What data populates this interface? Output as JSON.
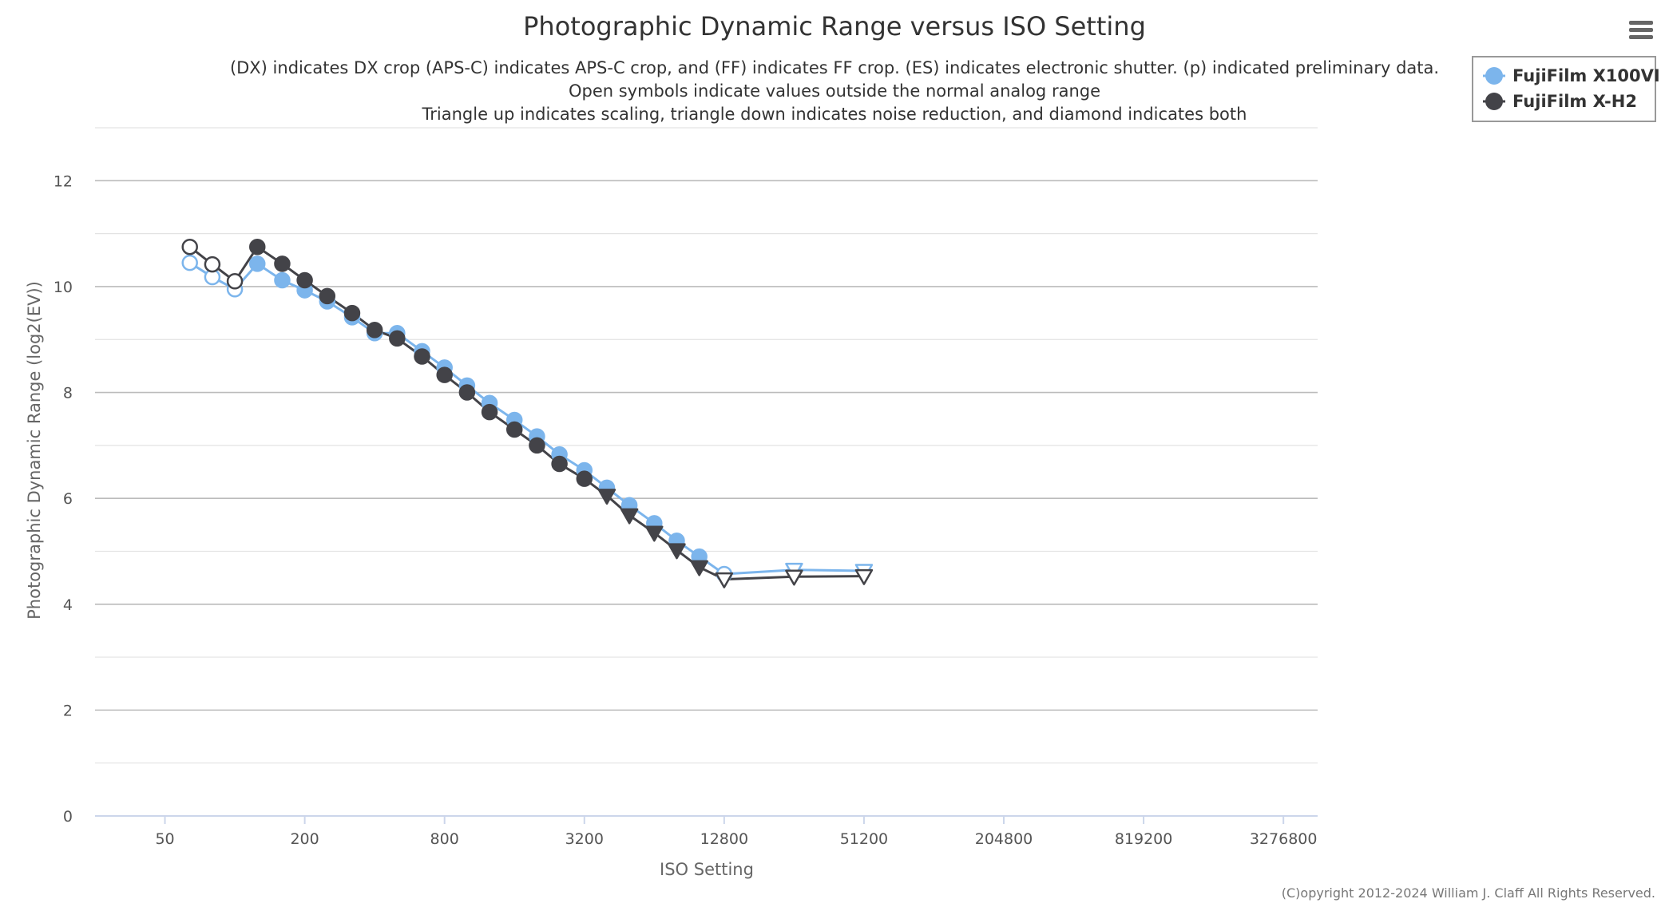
{
  "chart_data": {
    "type": "line",
    "title": "Photographic Dynamic Range versus ISO Setting",
    "subtitle_lines": [
      "(DX) indicates DX crop (APS-C) indicates APS-C crop, and (FF) indicates FF crop. (ES) indicates electronic shutter. (p) indicated preliminary data.",
      "Open symbols indicate values outside the normal analog range",
      "Triangle up indicates scaling, triangle down indicates noise reduction, and diamond indicates both"
    ],
    "xlabel": "ISO Setting",
    "ylabel": "Photographic Dynamic Range (log2(EV))",
    "x_scale": "log2",
    "xlim": [
      25,
      4600000
    ],
    "ylim": [
      0,
      13
    ],
    "x_ticks": [
      50,
      200,
      800,
      3200,
      12800,
      51200,
      204800,
      819200,
      3276800
    ],
    "x_tick_labels": [
      "50",
      "200",
      "800",
      "3200",
      "12800",
      "51200",
      "204800",
      "819200",
      "3276800"
    ],
    "y_ticks": [
      0,
      2,
      4,
      6,
      8,
      10,
      12
    ],
    "y_tick_labels": [
      "0",
      "2",
      "4",
      "6",
      "8",
      "10",
      "12"
    ],
    "grid": true,
    "legend_position": "top-right",
    "series": [
      {
        "name": "FujiFilm X100VI",
        "color": "#7cb5ec",
        "points": [
          {
            "x": 64,
            "y": 10.45,
            "symbol": "circle",
            "open": true
          },
          {
            "x": 80,
            "y": 10.18,
            "symbol": "circle",
            "open": true
          },
          {
            "x": 100,
            "y": 9.95,
            "symbol": "circle",
            "open": true
          },
          {
            "x": 125,
            "y": 10.43,
            "symbol": "circle",
            "open": false
          },
          {
            "x": 160,
            "y": 10.12,
            "symbol": "circle",
            "open": false
          },
          {
            "x": 200,
            "y": 9.93,
            "symbol": "circle",
            "open": false
          },
          {
            "x": 250,
            "y": 9.72,
            "symbol": "circle",
            "open": false
          },
          {
            "x": 320,
            "y": 9.42,
            "symbol": "circle",
            "open": false
          },
          {
            "x": 400,
            "y": 9.12,
            "symbol": "circle",
            "open": false
          },
          {
            "x": 500,
            "y": 9.12,
            "symbol": "circle",
            "open": false
          },
          {
            "x": 640,
            "y": 8.78,
            "symbol": "circle",
            "open": false
          },
          {
            "x": 800,
            "y": 8.47,
            "symbol": "circle",
            "open": false
          },
          {
            "x": 1000,
            "y": 8.13,
            "symbol": "circle",
            "open": false
          },
          {
            "x": 1250,
            "y": 7.8,
            "symbol": "circle",
            "open": false
          },
          {
            "x": 1600,
            "y": 7.48,
            "symbol": "circle",
            "open": false
          },
          {
            "x": 2000,
            "y": 7.17,
            "symbol": "circle",
            "open": false
          },
          {
            "x": 2500,
            "y": 6.83,
            "symbol": "circle",
            "open": false
          },
          {
            "x": 3200,
            "y": 6.53,
            "symbol": "circle",
            "open": false
          },
          {
            "x": 4000,
            "y": 6.2,
            "symbol": "circle",
            "open": false
          },
          {
            "x": 5000,
            "y": 5.87,
            "symbol": "circle",
            "open": false
          },
          {
            "x": 6400,
            "y": 5.53,
            "symbol": "circle",
            "open": false
          },
          {
            "x": 8000,
            "y": 5.2,
            "symbol": "circle",
            "open": false
          },
          {
            "x": 10000,
            "y": 4.9,
            "symbol": "circle",
            "open": false
          },
          {
            "x": 12800,
            "y": 4.57,
            "symbol": "circle",
            "open": true
          },
          {
            "x": 25600,
            "y": 4.65,
            "symbol": "triangle-down",
            "open": true
          },
          {
            "x": 51200,
            "y": 4.63,
            "symbol": "triangle-down",
            "open": true
          }
        ]
      },
      {
        "name": "FujiFilm X-H2",
        "color": "#434348",
        "points": [
          {
            "x": 64,
            "y": 10.75,
            "symbol": "circle",
            "open": true
          },
          {
            "x": 80,
            "y": 10.42,
            "symbol": "circle",
            "open": true
          },
          {
            "x": 100,
            "y": 10.1,
            "symbol": "circle",
            "open": true
          },
          {
            "x": 125,
            "y": 10.75,
            "symbol": "circle",
            "open": false
          },
          {
            "x": 160,
            "y": 10.43,
            "symbol": "circle",
            "open": false
          },
          {
            "x": 200,
            "y": 10.12,
            "symbol": "circle",
            "open": false
          },
          {
            "x": 250,
            "y": 9.82,
            "symbol": "circle",
            "open": false
          },
          {
            "x": 320,
            "y": 9.5,
            "symbol": "circle",
            "open": false
          },
          {
            "x": 400,
            "y": 9.18,
            "symbol": "circle",
            "open": false
          },
          {
            "x": 500,
            "y": 9.02,
            "symbol": "circle",
            "open": false
          },
          {
            "x": 640,
            "y": 8.68,
            "symbol": "circle",
            "open": false
          },
          {
            "x": 800,
            "y": 8.33,
            "symbol": "circle",
            "open": false
          },
          {
            "x": 1000,
            "y": 8.0,
            "symbol": "circle",
            "open": false
          },
          {
            "x": 1250,
            "y": 7.63,
            "symbol": "circle",
            "open": false
          },
          {
            "x": 1600,
            "y": 7.3,
            "symbol": "circle",
            "open": false
          },
          {
            "x": 2000,
            "y": 7.0,
            "symbol": "circle",
            "open": false
          },
          {
            "x": 2500,
            "y": 6.65,
            "symbol": "circle",
            "open": false
          },
          {
            "x": 3200,
            "y": 6.37,
            "symbol": "circle",
            "open": false
          },
          {
            "x": 4000,
            "y": 6.05,
            "symbol": "triangle-down",
            "open": false
          },
          {
            "x": 5000,
            "y": 5.68,
            "symbol": "triangle-down",
            "open": false
          },
          {
            "x": 6400,
            "y": 5.35,
            "symbol": "triangle-down",
            "open": false
          },
          {
            "x": 8000,
            "y": 5.02,
            "symbol": "triangle-down",
            "open": false
          },
          {
            "x": 10000,
            "y": 4.7,
            "symbol": "triangle-down",
            "open": false
          },
          {
            "x": 12800,
            "y": 4.47,
            "symbol": "triangle-down",
            "open": true
          },
          {
            "x": 25600,
            "y": 4.52,
            "symbol": "triangle-down",
            "open": true
          },
          {
            "x": 51200,
            "y": 4.53,
            "symbol": "triangle-down",
            "open": true
          }
        ]
      }
    ]
  },
  "credits": "(C)opyright 2012-2024 William J. Claff All Rights Reserved.",
  "menu_icon": "hamburger-menu-icon"
}
